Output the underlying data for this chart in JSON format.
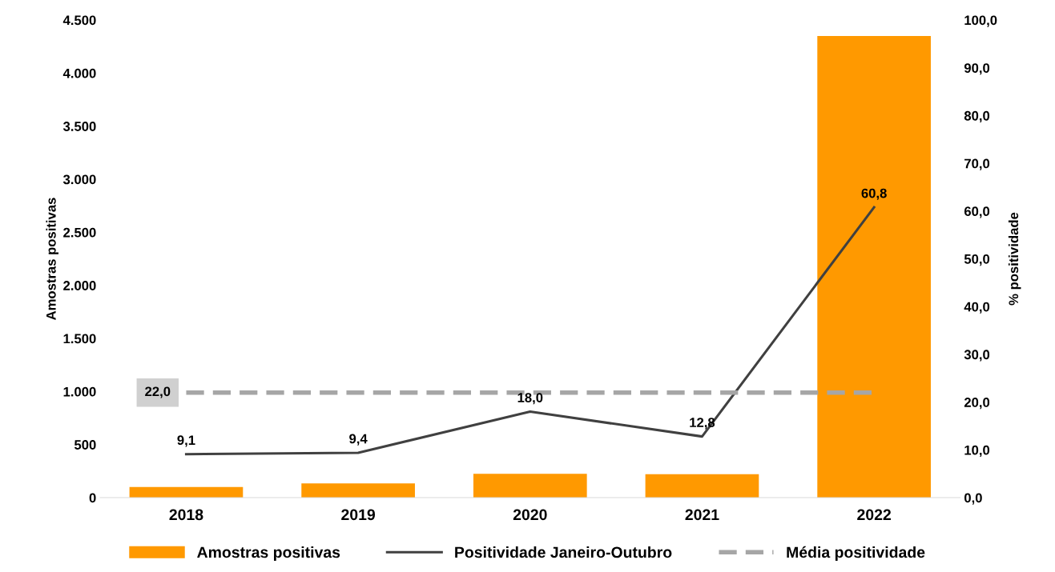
{
  "chart_data": {
    "type": "bar",
    "ylabel": "Amostras positivas",
    "y2label": "% positividade",
    "categories": [
      "2018",
      "2019",
      "2020",
      "2021",
      "2022"
    ],
    "series": [
      {
        "name": "Amostras positivas",
        "color": "#ff9900",
        "values": [
          100,
          135,
          225,
          220,
          4350
        ]
      },
      {
        "name": "Positividade Janeiro-Outubro",
        "type": "line",
        "axis": "y2",
        "color": "#404040",
        "line_style": "solid",
        "values": [
          9.1,
          9.4,
          18.0,
          12.8,
          60.8
        ],
        "value_labels": [
          "9,1",
          "9,4",
          "18,0",
          "12,8",
          "60,8"
        ]
      },
      {
        "name": "Média positividade",
        "type": "line",
        "axis": "y2",
        "color": "#a6a6a6",
        "line_style": "dashed",
        "values": [
          22.0,
          22.0,
          22.0,
          22.0,
          22.0
        ],
        "value_labels": [
          "22,0",
          null,
          null,
          null,
          null
        ]
      }
    ],
    "ylim": [
      0,
      4500
    ],
    "yticks": [
      0,
      500,
      {
        "value": 1000,
        "label": "1.000"
      },
      {
        "value": 1500,
        "label": "1.500"
      },
      {
        "value": 2000,
        "label": "2.000"
      },
      {
        "value": 2500,
        "label": "2.500"
      },
      {
        "value": 3000,
        "label": "3.000"
      },
      {
        "value": 3500,
        "label": "3.500"
      },
      {
        "value": 4000,
        "label": "4.000"
      },
      {
        "value": 4500,
        "label": "4.500"
      }
    ],
    "y2lim": [
      0,
      100
    ],
    "y2ticks": [
      {
        "value": 0,
        "label": "0,0"
      },
      {
        "value": 10,
        "label": "10,0"
      },
      {
        "value": 20,
        "label": "20,0"
      },
      {
        "value": 30,
        "label": "30,0"
      },
      {
        "value": 40,
        "label": "40,0"
      },
      {
        "value": 50,
        "label": "50,0"
      },
      {
        "value": 60,
        "label": "60,0"
      },
      {
        "value": 70,
        "label": "70,0"
      },
      {
        "value": 80,
        "label": "80,0"
      },
      {
        "value": 90,
        "label": "90,0"
      },
      {
        "value": 100,
        "label": "100,0"
      }
    ],
    "grid": false,
    "legend": "bottom"
  }
}
